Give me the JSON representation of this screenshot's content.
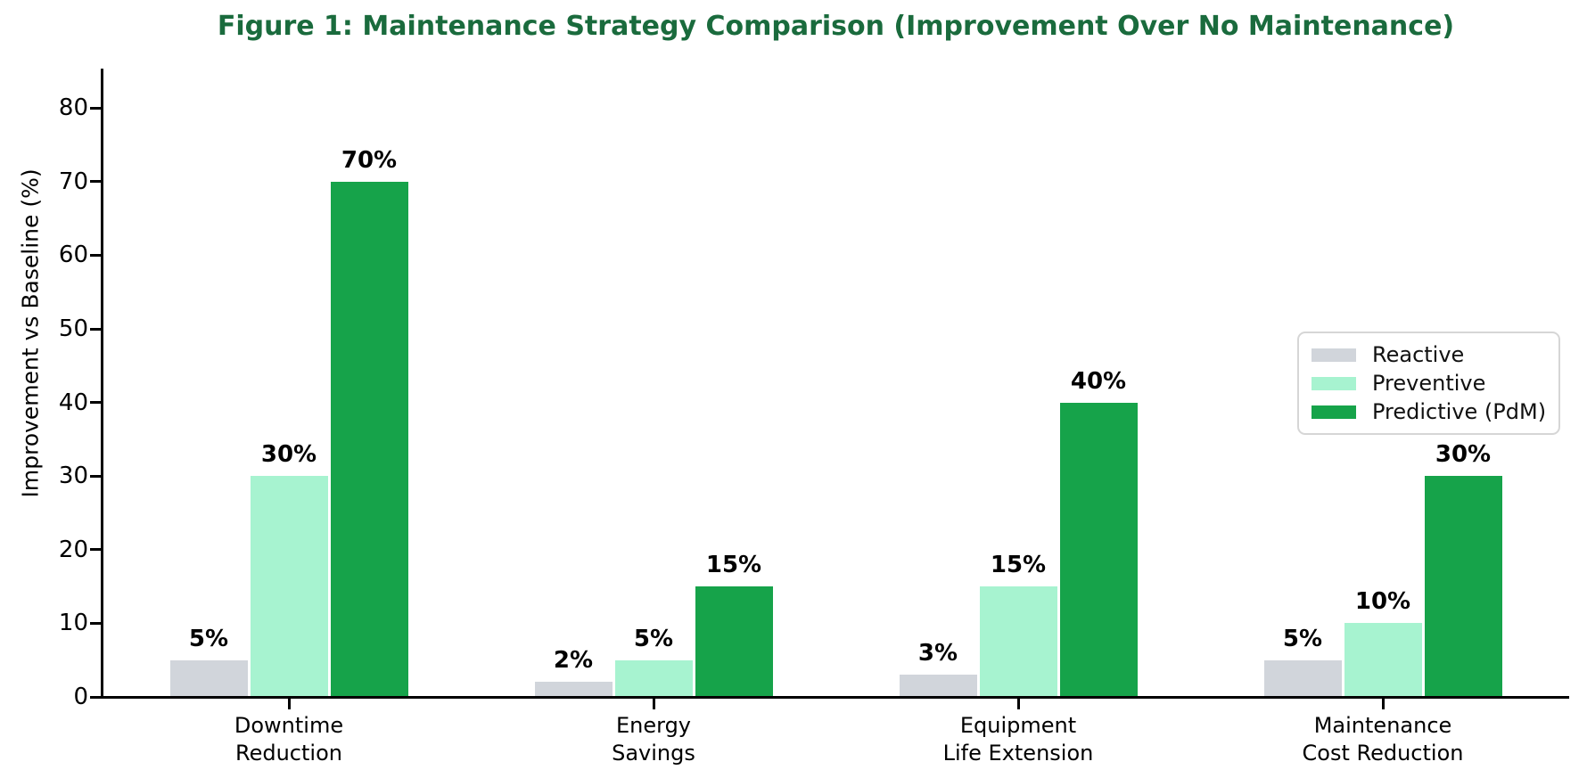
{
  "title": "Figure 1: Maintenance Strategy Comparison (Improvement Over No Maintenance)",
  "colors": {
    "title_green": "#1a6b3d",
    "axis_black": "#000000",
    "reactive_gray": "#d1d5db",
    "preventive_mint": "#a7f3d0",
    "predictive_green": "#16a34a",
    "legend_border": "#d6d6d6"
  },
  "chart_data": {
    "type": "bar",
    "title": "Figure 1: Maintenance Strategy Comparison (Improvement Over No Maintenance)",
    "xlabel": "",
    "ylabel": "Improvement vs Baseline (%)",
    "ylim": [
      0,
      85
    ],
    "yticks": [
      0,
      10,
      20,
      30,
      40,
      50,
      60,
      70,
      80
    ],
    "grid": false,
    "legend_position": "center right",
    "value_label_suffix": "%",
    "categories": [
      "Downtime\nReduction",
      "Energy\nSavings",
      "Equipment\nLife Extension",
      "Maintenance\nCost Reduction"
    ],
    "series": [
      {
        "name": "Reactive",
        "color": "#d1d5db",
        "values": [
          5,
          2,
          3,
          5
        ]
      },
      {
        "name": "Preventive",
        "color": "#a7f3d0",
        "values": [
          30,
          5,
          15,
          10
        ]
      },
      {
        "name": "Predictive (PdM)",
        "color": "#16a34a",
        "values": [
          70,
          15,
          40,
          30
        ]
      }
    ]
  }
}
